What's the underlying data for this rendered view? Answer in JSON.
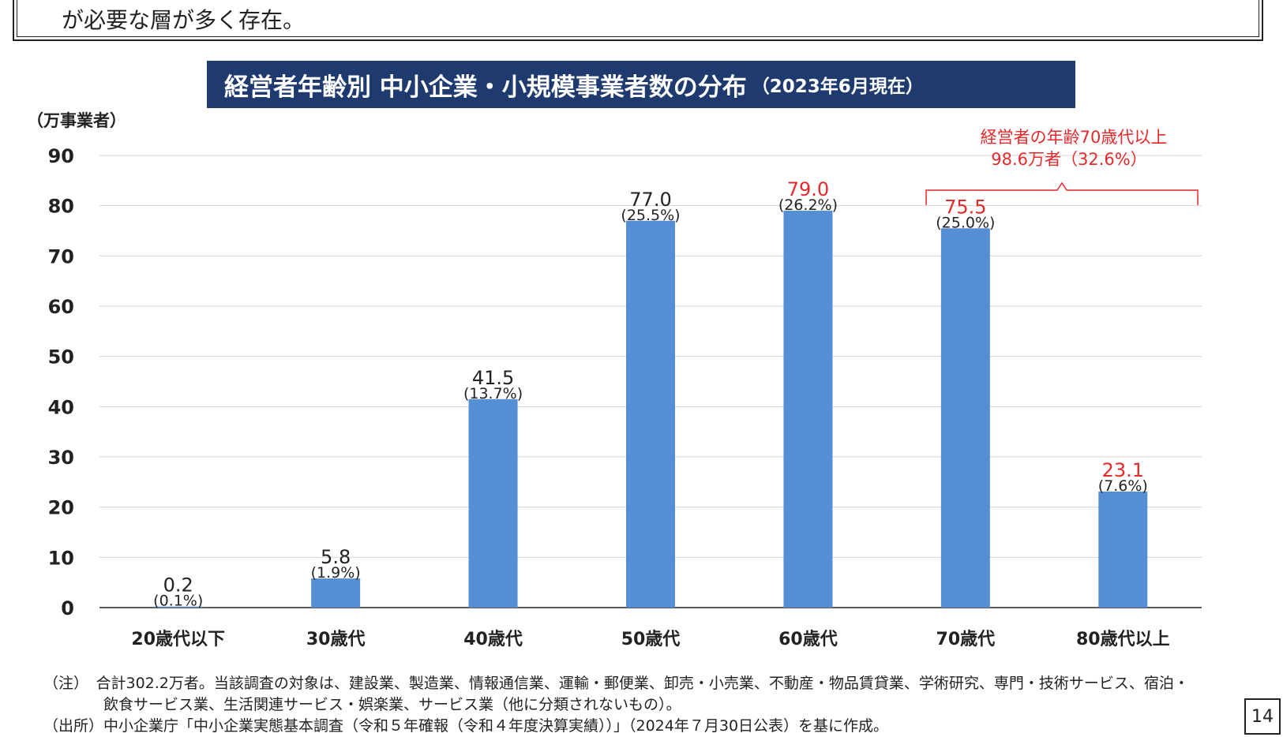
{
  "header": {
    "text": "が必要な層が多く存在。"
  },
  "title": {
    "main": "経営者年齢別 中小企業・小規模事業者数の分布",
    "date": "（2023年6月現在）"
  },
  "chart_data": {
    "type": "bar",
    "title": "経営者年齢別 中小企業・小規模事業者数の分布",
    "ylabel": "（万事業者）",
    "xlabel": "",
    "ylim": [
      0,
      90
    ],
    "yticks": [
      "0",
      "10",
      "20",
      "30",
      "40",
      "50",
      "60",
      "70",
      "80",
      "90"
    ],
    "grid": true,
    "categories": [
      "20歳代以下",
      "30歳代",
      "40歳代",
      "50歳代",
      "60歳代",
      "70歳代",
      "80歳代以上"
    ],
    "values": [
      0.2,
      5.8,
      41.5,
      77.0,
      79.0,
      75.5,
      23.1
    ],
    "value_labels": [
      "0.2",
      "5.8",
      "41.5",
      "77.0",
      "79.0",
      "75.5",
      "23.1"
    ],
    "pct_labels": [
      "(0.1%)",
      "(1.9%)",
      "(13.7%)",
      "(25.5%)",
      "(26.2%)",
      "(25.0%)",
      "(7.6%)"
    ],
    "highlight": [
      false,
      false,
      false,
      false,
      true,
      true,
      true
    ],
    "bar_color": "#558ed5",
    "highlight_color": "#e5292b",
    "annotation": {
      "line1": "経営者の年齢70歳代以上",
      "line2": "98.6万者（32.6%）"
    }
  },
  "notes": {
    "line1": "（注）　合計302.2万者。当該調査の対象は、建設業、製造業、情報通信業、運輸・郵便業、卸売・小売業、不動産・物品賃貸業、学術研究、専門・技術サービス、宿泊・",
    "line2": "　　　　飲食サービス業、生活関連サービス・娯楽業、サービス業（他に分類されないもの）。",
    "line3": "（出所）中小企業庁「中小企業実態基本調査（令和５年確報（令和４年度決算実績））」（2024年７月30日公表）を基に作成。"
  },
  "page_number": "14"
}
